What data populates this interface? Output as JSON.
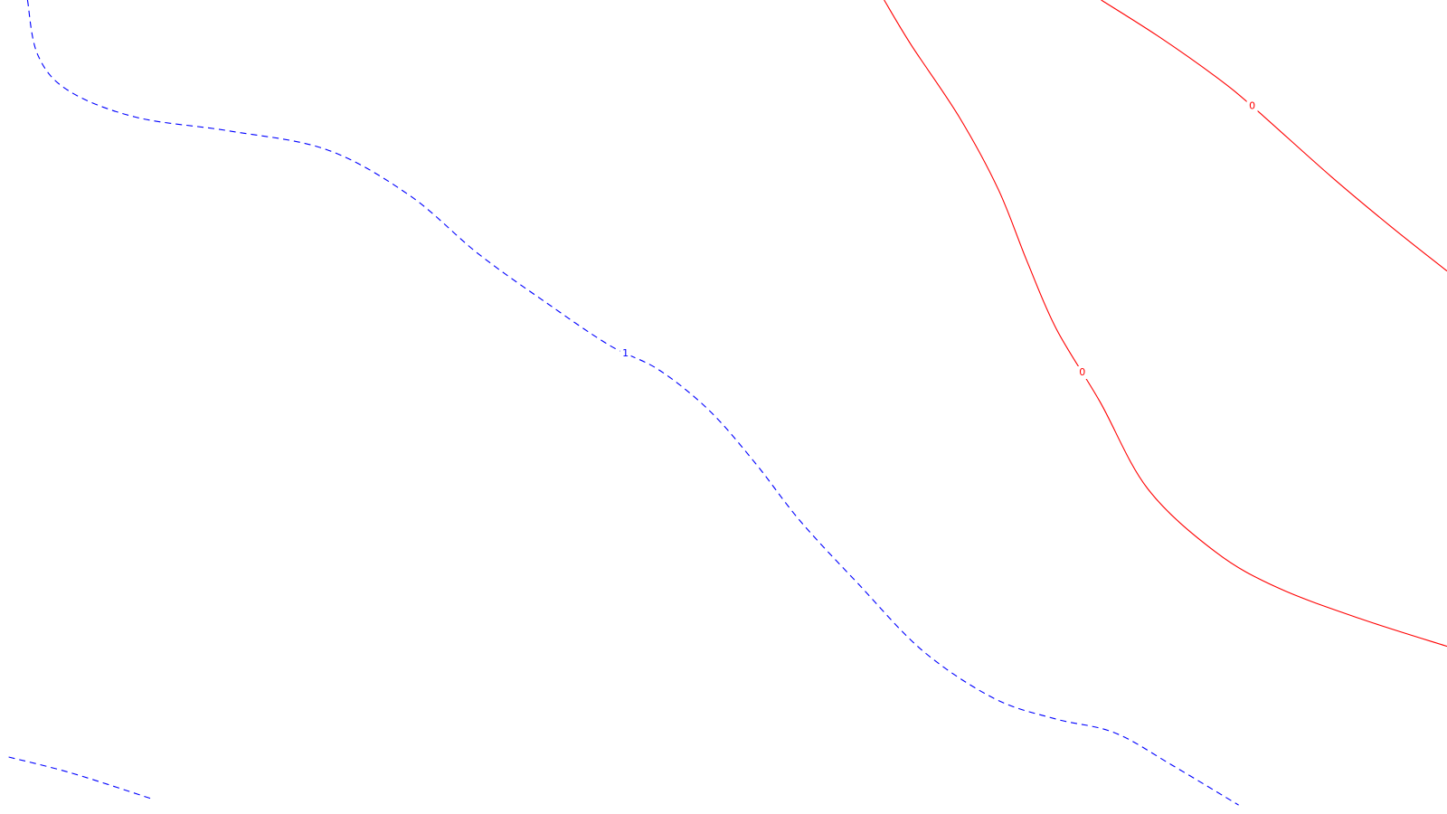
{
  "chart_data": {
    "type": "contour",
    "title": "",
    "xlabel": "",
    "ylabel": "",
    "grid": false,
    "series": [
      {
        "label": "1",
        "line_style": "dashed",
        "color": "#0000ff",
        "segments": [
          {
            "label_shown": true,
            "points": [
              [
                0.019,
                0.0
              ],
              [
                0.026,
                0.067
              ],
              [
                0.047,
                0.111
              ],
              [
                0.094,
                0.144
              ],
              [
                0.159,
                0.161
              ],
              [
                0.226,
                0.184
              ],
              [
                0.283,
                0.24
              ],
              [
                0.33,
                0.311
              ],
              [
                0.376,
                0.37
              ],
              [
                0.421,
                0.424
              ],
              [
                0.455,
                0.454
              ],
              [
                0.49,
                0.504
              ],
              [
                0.522,
                0.569
              ],
              [
                0.553,
                0.64
              ],
              [
                0.593,
                0.717
              ],
              [
                0.638,
                0.8
              ],
              [
                0.687,
                0.858
              ],
              [
                0.729,
                0.883
              ],
              [
                0.77,
                0.9
              ],
              [
                0.81,
                0.94
              ],
              [
                0.856,
                0.989
              ]
            ]
          },
          {
            "label_shown": false,
            "points": [
              [
                0.006,
                0.93
              ],
              [
                0.05,
                0.95
              ],
              [
                0.106,
                0.982
              ]
            ]
          }
        ]
      },
      {
        "label": "0",
        "line_style": "solid",
        "color": "#ff0000",
        "segments": [
          {
            "label_shown": true,
            "points": [
              [
                0.611,
                0.0
              ],
              [
                0.63,
                0.056
              ],
              [
                0.663,
                0.144
              ],
              [
                0.69,
                0.233
              ],
              [
                0.71,
                0.322
              ],
              [
                0.73,
                0.404
              ],
              [
                0.76,
                0.493
              ],
              [
                0.793,
                0.6
              ],
              [
                0.84,
                0.678
              ],
              [
                0.883,
                0.722
              ],
              [
                0.94,
                0.76
              ],
              [
                1.0,
                0.794
              ]
            ]
          },
          {
            "label_shown": true,
            "points": [
              [
                0.761,
                0.0
              ],
              [
                0.8,
                0.044
              ],
              [
                0.84,
                0.094
              ],
              [
                0.867,
                0.133
              ],
              [
                0.92,
                0.217
              ],
              [
                0.961,
                0.278
              ],
              [
                1.0,
                0.333
              ]
            ]
          }
        ]
      }
    ]
  }
}
